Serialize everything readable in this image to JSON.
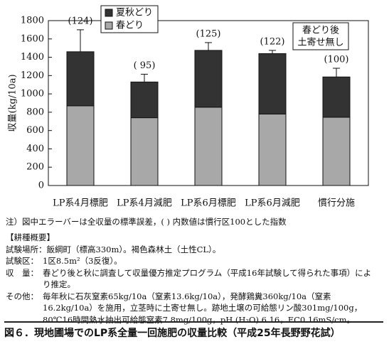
{
  "chart_data": {
    "type": "stacked-bar",
    "y_label": "収量(kg/10a)",
    "categories": [
      "LP系4月標肥",
      "LP系4月減肥",
      "LP系6月標肥",
      "LP系6月減肥",
      "慣行分施"
    ],
    "series": [
      {
        "name": "春どり",
        "color": "#a8a8a8",
        "values": [
          870,
          740,
          855,
          780,
          745
        ]
      },
      {
        "name": "夏秋どり",
        "color": "#333333",
        "values": [
          590,
          390,
          620,
          660,
          440
        ]
      }
    ],
    "errors": [
      240,
      85,
      85,
      35,
      95
    ],
    "index_labels": [
      "(124)",
      "( 95)",
      "(125)",
      "(122)",
      "(100)"
    ],
    "annotation": [
      "春どり後",
      "土寄せ無し"
    ],
    "ylim": [
      0,
      1800
    ],
    "yticks": [
      0,
      200,
      400,
      600,
      800,
      1000,
      1200,
      1400,
      1600,
      1800
    ]
  },
  "note": "注）図中エラーバーは全収量の標準誤差，( ) 内数値は慣行区100とした指数",
  "cultivation": {
    "heading": "【耕種概要】",
    "rows": [
      [
        "試験場所：",
        "飯綱町（標高330m）。褐色森林土（土性CL）。"
      ],
      [
        "試験区：",
        "1区8.5m²（3反復）。"
      ],
      [
        "収　量：",
        "春どり後と秋に調査して収量優方推定プログラム（平成16年試験して得られた事項）により推定。"
      ],
      [
        "その他：",
        "毎年秋に石灰窒素65kg/10a（窒素13.6kg/10a），発酵鶏糞360kg/10a（窒素16.2kg/10a）を施用，立茎時に土寄せ無し。跡地土壌の可給態リン酸301mg/100g，80℃16時間熱水抽出可給態窒素7.8mg/100g，pH (H₂O) 6.16，EC0.16mS/cm。"
      ]
    ]
  },
  "caption": "図６．現地圃場でのLP系全量一回施肥の収量比較（平成25年長野野花試）"
}
